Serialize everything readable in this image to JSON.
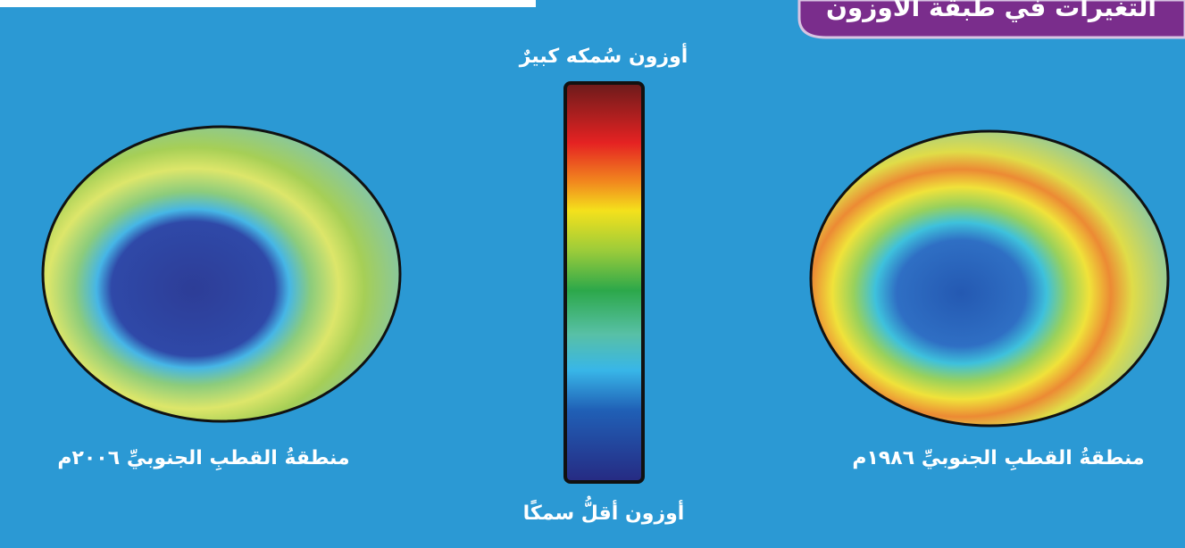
{
  "header": {
    "title": "التغيرات في طبقة الأوزون"
  },
  "legend": {
    "high": "أوزون سُمكه كبيرٌ",
    "low": "أوزون أقلُّ سمكًا"
  },
  "panels": [
    {
      "caption": "منطقةُ القطبِ الجنوبيِّ ٢٠٠٦م"
    },
    {
      "caption": "منطقةُ القطبِ الجنوبيِّ ١٩٨٦م"
    }
  ]
}
